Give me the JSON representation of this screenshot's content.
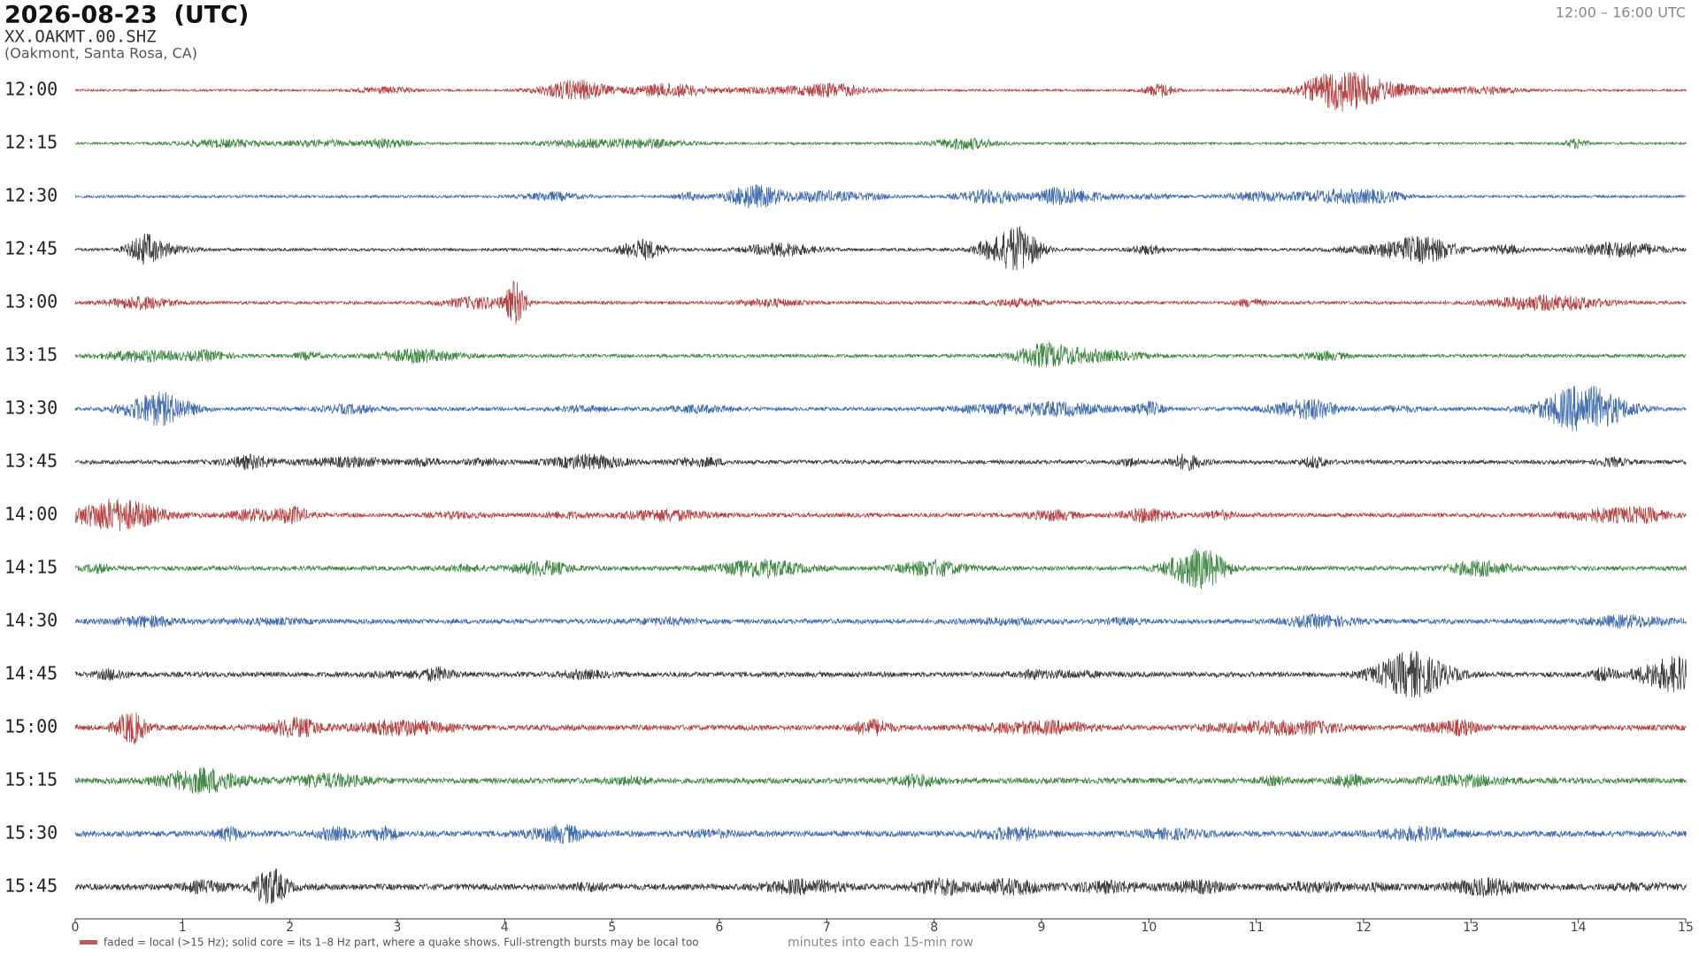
{
  "header": {
    "date": "2026-08-23  (UTC)",
    "station": "XX.OAKMT.00.SHZ",
    "location": "(Oakmont, Santa Rosa, CA)",
    "range": "12:00 – 16:00 UTC"
  },
  "chart_data": {
    "type": "helicorder",
    "rows": [
      "12:00",
      "12:15",
      "12:30",
      "12:45",
      "13:00",
      "13:15",
      "13:30",
      "13:45",
      "14:00",
      "14:15",
      "14:30",
      "14:45",
      "15:00",
      "15:15",
      "15:30",
      "15:45"
    ],
    "colors": [
      "#b03030",
      "#2e7d32",
      "#2f5fa8",
      "#2a2a2a"
    ],
    "xlim": [
      0,
      15
    ],
    "xticks": [
      0,
      1,
      2,
      3,
      4,
      5,
      6,
      7,
      8,
      9,
      10,
      11,
      12,
      13,
      14,
      15
    ],
    "xlabel": "minutes into each 15-min row",
    "legend": "faded = local (>15 Hz); solid core = its 1–8 Hz part, where a quake shows. Full-strength bursts may be local too"
  }
}
